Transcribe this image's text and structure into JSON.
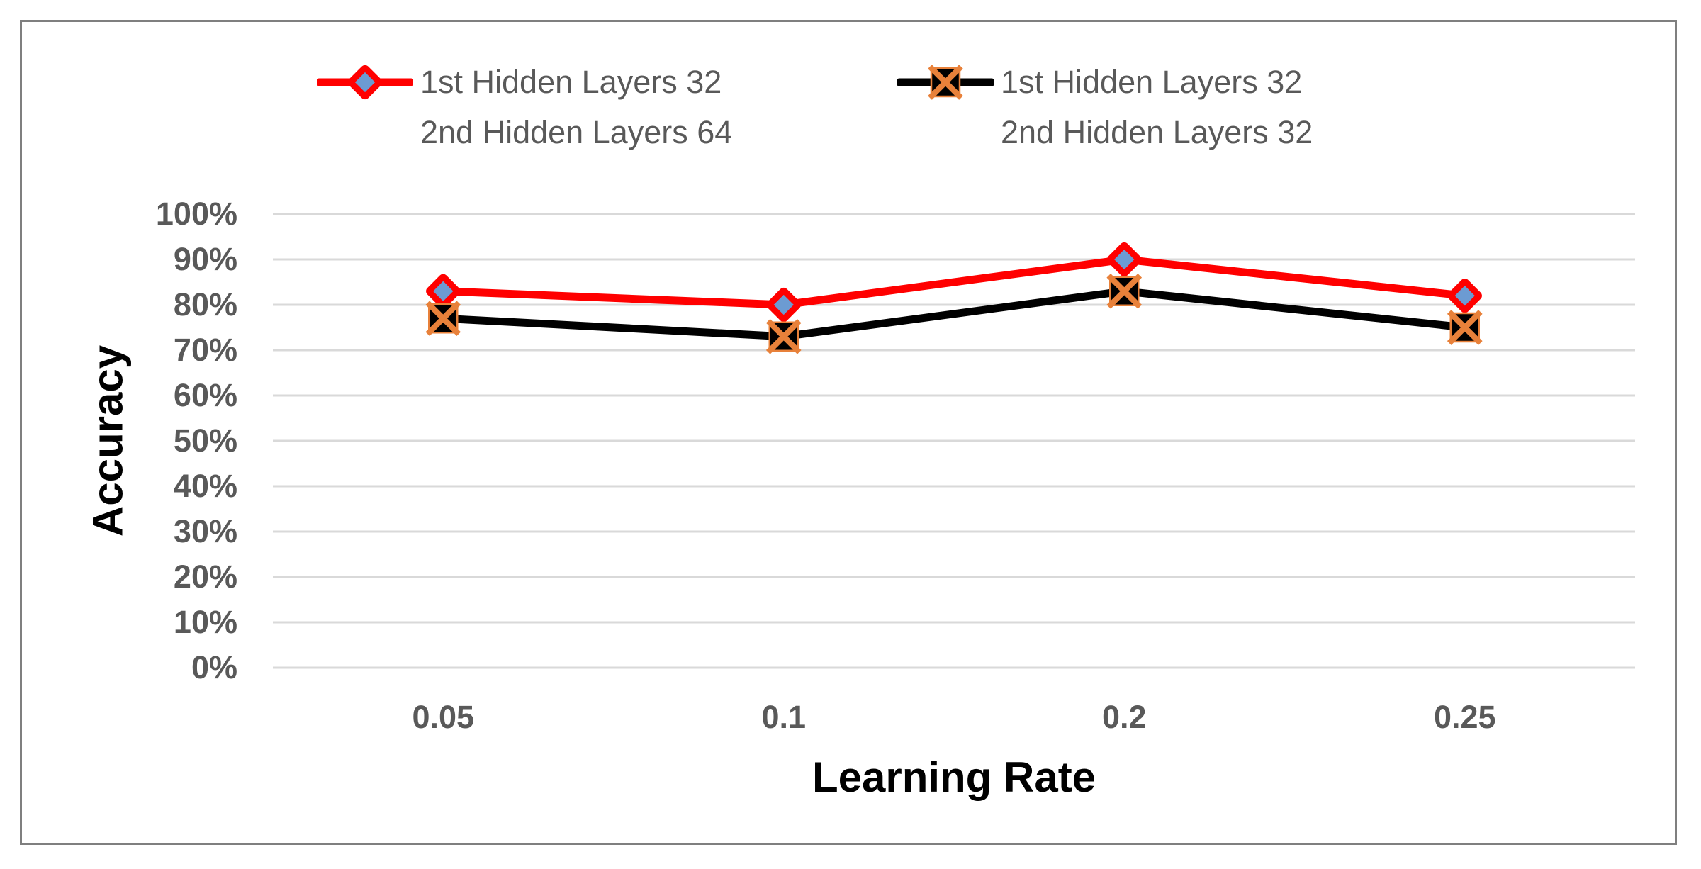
{
  "chart_data": {
    "type": "line",
    "title": "",
    "xlabel": "Learning Rate",
    "ylabel": "Accuracy",
    "categories": [
      "0.05",
      "0.1",
      "0.2",
      "0.25"
    ],
    "series": [
      {
        "name": "1st Hidden Layers 32 2nd Hidden Layers 64",
        "name_lines": [
          "1st Hidden Layers 32",
          "2nd Hidden Layers 64"
        ],
        "values": [
          83,
          80,
          90,
          82
        ],
        "line_color": "#ff0000",
        "marker": "diamond",
        "marker_fill": "#6c9bd2",
        "marker_stroke": "#ff0000"
      },
      {
        "name": "1st Hidden Layers 32 2nd Hidden Layers 32",
        "name_lines": [
          "1st Hidden Layers 32",
          "2nd Hidden Layers 32"
        ],
        "values": [
          77,
          73,
          83,
          75
        ],
        "line_color": "#000000",
        "marker": "x-square",
        "marker_fill": "#000000",
        "marker_stroke": "#e8813a"
      }
    ],
    "ylim": [
      0,
      100
    ],
    "ytick_step": 10,
    "ytick_labels": [
      "0%",
      "10%",
      "20%",
      "30%",
      "40%",
      "50%",
      "60%",
      "70%",
      "80%",
      "90%",
      "100%"
    ],
    "grid": "horizontal",
    "grid_color": "#d9d9d9",
    "legend_position": "top",
    "frame_color": "#7f7f7f",
    "tick_label_color": "#595959",
    "axis_title_color": "#000000"
  }
}
